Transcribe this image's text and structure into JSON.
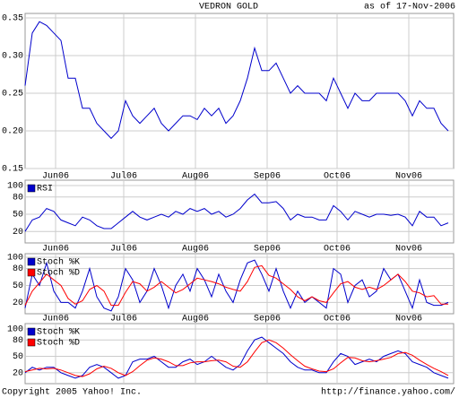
{
  "header": {
    "title": "VEDRON GOLD",
    "date": "as of 17-Nov-2006"
  },
  "footer": {
    "copyright": "Copyright 2005 Yahoo! Inc.",
    "url": "http://finance.yahoo.com/"
  },
  "chart_data": [
    {
      "type": "line",
      "xlim": [
        0,
        59.75
      ],
      "xticks": [
        {
          "value": 4.25,
          "label": "Jun06"
        },
        {
          "value": 13.75,
          "label": "Jul06"
        },
        {
          "value": 23.75,
          "label": "Aug06"
        },
        {
          "value": 33.75,
          "label": "Sep06"
        },
        {
          "value": 43.5,
          "label": "Oct06"
        },
        {
          "value": 53.5,
          "label": "Nov06"
        }
      ],
      "ylim": [
        0.15,
        0.35
      ],
      "yticks": [
        0.15,
        {
          "value": 0.2,
          "label": "0.20"
        },
        0.25,
        {
          "value": 0.3,
          "label": "0.30"
        },
        0.35
      ],
      "series": [
        {
          "color": "#0000cc",
          "values": [
            0.26,
            0.33,
            0.345,
            0.34,
            0.33,
            0.32,
            0.27,
            0.27,
            0.23,
            0.23,
            0.21,
            0.2,
            0.19,
            0.2,
            0.24,
            0.22,
            0.21,
            0.22,
            0.23,
            0.21,
            0.2,
            0.21,
            0.22,
            0.22,
            0.215,
            0.23,
            0.22,
            0.23,
            0.21,
            0.22,
            0.24,
            0.27,
            0.31,
            0.28,
            0.28,
            0.29,
            0.27,
            0.25,
            0.26,
            0.25,
            0.25,
            0.25,
            0.24,
            0.27,
            0.25,
            0.23,
            0.25,
            0.24,
            0.24,
            0.25,
            0.25,
            0.25,
            0.25,
            0.24,
            0.22,
            0.24,
            0.23,
            0.23,
            0.21,
            0.2
          ]
        }
      ]
    },
    {
      "type": "line",
      "xlim": [
        0,
        59.75
      ],
      "xticks": [
        {
          "value": 4.25,
          "label": "Jun06"
        },
        {
          "value": 13.75,
          "label": "Jul06"
        },
        {
          "value": 23.75,
          "label": "Aug06"
        },
        {
          "value": 33.75,
          "label": "Sep06"
        },
        {
          "value": 43.5,
          "label": "Oct06"
        },
        {
          "value": 53.5,
          "label": "Nov06"
        }
      ],
      "ylim": [
        0,
        100
      ],
      "yticks": [
        20,
        50,
        80,
        100
      ],
      "series": [
        {
          "name": "RSI",
          "color": "#0000cc",
          "values": [
            20,
            40,
            45,
            60,
            55,
            40,
            35,
            30,
            45,
            40,
            30,
            25,
            25,
            35,
            45,
            55,
            45,
            40,
            45,
            50,
            45,
            55,
            50,
            60,
            55,
            60,
            50,
            55,
            45,
            50,
            60,
            75,
            85,
            70,
            70,
            72,
            60,
            40,
            50,
            45,
            45,
            40,
            40,
            65,
            55,
            40,
            55,
            50,
            45,
            50,
            50,
            48,
            50,
            45,
            30,
            55,
            45,
            45,
            30,
            35
          ]
        }
      ]
    },
    {
      "type": "line",
      "xlim": [
        0,
        59.75
      ],
      "xticks": [
        {
          "value": 4.25,
          "label": "Jun06"
        },
        {
          "value": 13.75,
          "label": "Jul06"
        },
        {
          "value": 23.75,
          "label": "Aug06"
        },
        {
          "value": 33.75,
          "label": "Sep06"
        },
        {
          "value": 43.5,
          "label": "Oct06"
        },
        {
          "value": 53.5,
          "label": "Nov06"
        }
      ],
      "ylim": [
        0,
        100
      ],
      "yticks": [
        20,
        50,
        80,
        100
      ],
      "series": [
        {
          "name": "Stoch %K",
          "color": "#0000cc",
          "values": [
            10,
            70,
            50,
            90,
            40,
            20,
            20,
            10,
            40,
            80,
            30,
            10,
            5,
            30,
            80,
            60,
            20,
            40,
            80,
            50,
            10,
            50,
            70,
            40,
            80,
            60,
            30,
            70,
            40,
            20,
            60,
            90,
            95,
            70,
            40,
            80,
            40,
            10,
            40,
            20,
            30,
            20,
            10,
            80,
            70,
            20,
            50,
            60,
            30,
            40,
            80,
            60,
            70,
            40,
            10,
            60,
            20,
            15,
            15,
            20
          ]
        },
        {
          "name": "Stoch %D",
          "color": "#ff0000",
          "values": [
            15,
            40,
            55,
            70,
            60,
            50,
            27,
            17,
            23,
            43,
            50,
            40,
            15,
            15,
            38,
            57,
            53,
            40,
            47,
            57,
            47,
            37,
            43,
            53,
            63,
            60,
            57,
            53,
            47,
            43,
            40,
            57,
            82,
            85,
            68,
            63,
            53,
            43,
            30,
            23,
            30,
            23,
            20,
            37,
            53,
            57,
            47,
            43,
            47,
            43,
            50,
            60,
            70,
            57,
            40,
            37,
            30,
            32,
            17,
            17
          ]
        }
      ]
    },
    {
      "type": "line",
      "xlim": [
        0,
        59.75
      ],
      "ylim": [
        0,
        100
      ],
      "yticks": [
        20,
        50,
        80,
        100
      ],
      "series": [
        {
          "name": "Stoch %K",
          "color": "#0000cc",
          "values": [
            20,
            30,
            25,
            30,
            30,
            20,
            15,
            10,
            15,
            30,
            35,
            30,
            20,
            10,
            15,
            40,
            45,
            45,
            50,
            40,
            30,
            30,
            40,
            45,
            35,
            40,
            50,
            40,
            30,
            25,
            35,
            60,
            80,
            85,
            75,
            65,
            55,
            40,
            30,
            25,
            25,
            20,
            20,
            40,
            55,
            50,
            35,
            40,
            45,
            40,
            50,
            55,
            60,
            55,
            40,
            35,
            30,
            20,
            15,
            10
          ]
        },
        {
          "name": "Stoch %D",
          "color": "#ff0000",
          "values": [
            22,
            25,
            28,
            27,
            28,
            25,
            20,
            15,
            13,
            18,
            27,
            32,
            28,
            20,
            15,
            22,
            33,
            43,
            47,
            45,
            40,
            33,
            33,
            38,
            40,
            40,
            42,
            43,
            40,
            32,
            30,
            40,
            58,
            75,
            80,
            75,
            65,
            53,
            42,
            32,
            27,
            23,
            22,
            27,
            38,
            48,
            47,
            42,
            40,
            42,
            45,
            48,
            55,
            57,
            52,
            43,
            35,
            28,
            22,
            15
          ]
        }
      ]
    }
  ]
}
